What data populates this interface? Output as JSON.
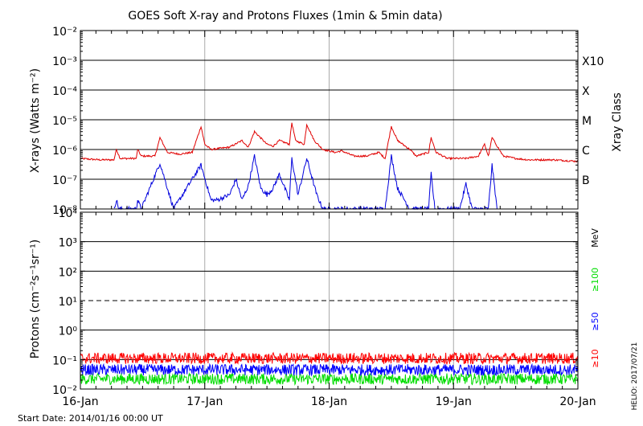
{
  "title": "GOES Soft X-ray and Protons Fluxes   (1min & 5min data)",
  "footer": {
    "start_date": "Start Date: 2014/01/16 00:00 UT",
    "credit": "HELIO: 2017/07/21"
  },
  "colors": {
    "long_channel": "#e00000",
    "short_channel": "#0000dd",
    "p10": "#ff0000",
    "p50": "#0000ff",
    "p100": "#00dd00"
  },
  "chart_data": [
    {
      "type": "line",
      "title": "GOES Soft X-ray and Protons Fluxes   (1min & 5min data)",
      "xlabel": "",
      "ylabel": "X-rays (Watts m⁻²)",
      "y_scale": "log",
      "ylim": [
        1e-08,
        0.01
      ],
      "y_ticks": [
        "10⁻⁸",
        "10⁻⁷",
        "10⁻⁶",
        "10⁻⁵",
        "10⁻⁴",
        "10⁻³",
        "10⁻²"
      ],
      "x_ticks": [
        "16-Jan",
        "17-Jan",
        "18-Jan",
        "19-Jan",
        "20-Jan"
      ],
      "xlim_days": [
        0,
        4
      ],
      "right_axis_label": "Xray Class",
      "class_labels": [
        {
          "label": "B",
          "flux": 1e-07
        },
        {
          "label": "C",
          "flux": 1e-06
        },
        {
          "label": "M",
          "flux": 1e-05
        },
        {
          "label": "X",
          "flux": 0.0001
        },
        {
          "label": "X10",
          "flux": 0.001
        }
      ],
      "grid": "horizontal lines at each decade, vertical lines at day boundaries",
      "series": [
        {
          "color": "#e00000",
          "x_days": [
            0,
            0.15,
            0.27,
            0.29,
            0.32,
            0.45,
            0.46,
            0.49,
            0.6,
            0.64,
            0.7,
            0.8,
            0.9,
            0.97,
            1.0,
            1.05,
            1.2,
            1.3,
            1.35,
            1.4,
            1.5,
            1.55,
            1.6,
            1.68,
            1.7,
            1.73,
            1.8,
            1.82,
            1.88,
            1.95,
            2.05,
            2.1,
            2.2,
            2.3,
            2.4,
            2.45,
            2.5,
            2.55,
            2.65,
            2.7,
            2.8,
            2.82,
            2.86,
            2.95,
            3.1,
            3.2,
            3.25,
            3.28,
            3.31,
            3.4,
            3.5,
            3.6,
            3.8,
            4.0
          ],
          "values": [
            5e-07,
            4.5e-07,
            4.5e-07,
            1e-06,
            5e-07,
            5e-07,
            1e-06,
            6e-07,
            6e-07,
            2.5e-06,
            8e-07,
            7e-07,
            8e-07,
            6e-06,
            1.5e-06,
            1e-06,
            1.2e-06,
            2e-06,
            1.2e-06,
            4e-06,
            1.5e-06,
            1.3e-06,
            2e-06,
            1.5e-06,
            8e-06,
            2e-06,
            1.5e-06,
            7e-06,
            2e-06,
            1e-06,
            8e-07,
            9e-07,
            6e-07,
            6e-07,
            8e-07,
            5e-07,
            6e-06,
            2e-06,
            1e-06,
            6e-07,
            8e-07,
            2.5e-06,
            8e-07,
            5e-07,
            5e-07,
            6e-07,
            1.5e-06,
            6e-07,
            2.5e-06,
            6e-07,
            5e-07,
            4.5e-07,
            4.5e-07,
            4e-07
          ]
        },
        {
          "color": "#0000dd",
          "x_days": [
            0.27,
            0.29,
            0.31,
            0.45,
            0.46,
            0.49,
            0.64,
            0.7,
            0.75,
            0.97,
            1.05,
            1.1,
            1.2,
            1.25,
            1.3,
            1.35,
            1.4,
            1.45,
            1.5,
            1.55,
            1.6,
            1.68,
            1.7,
            1.75,
            1.82,
            1.9,
            1.95,
            2.45,
            2.5,
            2.55,
            2.65,
            2.8,
            2.82,
            2.85,
            3.05,
            3.1,
            3.15,
            3.28,
            3.31,
            3.35
          ],
          "values": [
            1e-08,
            2e-08,
            1e-08,
            1e-08,
            2e-08,
            1e-08,
            3.5e-07,
            5e-08,
            1e-08,
            3e-07,
            2e-08,
            2e-08,
            3e-08,
            1e-07,
            2e-08,
            6e-08,
            6e-07,
            5e-08,
            3e-08,
            5e-08,
            1.5e-07,
            2e-08,
            5e-07,
            3e-08,
            5e-07,
            3e-08,
            1e-08,
            1e-08,
            6e-07,
            5e-08,
            1e-08,
            1e-08,
            1.5e-07,
            1e-08,
            1e-08,
            7e-08,
            1e-08,
            1e-08,
            3e-07,
            1e-08
          ]
        }
      ]
    },
    {
      "type": "line",
      "xlabel": "",
      "ylabel": "Protons (cm⁻²s⁻¹sr⁻¹)",
      "y_scale": "log",
      "ylim": [
        0.01,
        10000
      ],
      "y_ticks": [
        "10⁻²",
        "10⁻¹",
        "10⁰",
        "10¹",
        "10²",
        "10³",
        "10⁴"
      ],
      "x_ticks": [
        "16-Jan",
        "17-Jan",
        "18-Jan",
        "19-Jan",
        "20-Jan"
      ],
      "xlim_days": [
        0,
        4
      ],
      "right_axis_unit": "MeV",
      "grid": "horizontal lines at each decade; dashed line at 10¹",
      "series": [
        {
          "name": "≥10",
          "color": "#ff0000",
          "typical_value": 0.11
        },
        {
          "name": "≥50",
          "color": "#0000ff",
          "typical_value": 0.045
        },
        {
          "name": "≥100",
          "color": "#00dd00",
          "typical_value": 0.022
        }
      ]
    }
  ]
}
